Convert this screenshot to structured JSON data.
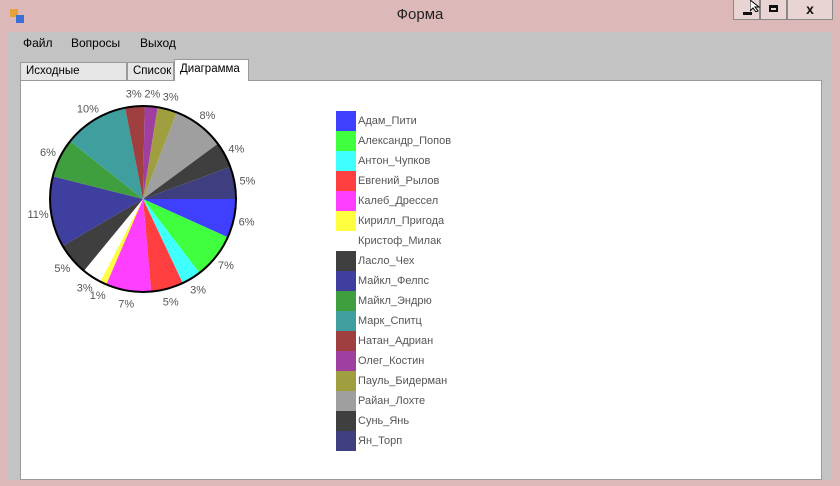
{
  "window": {
    "title": "Форма",
    "close_glyph": "x"
  },
  "menu": {
    "items": [
      "Файл",
      "Вопросы",
      "Выход"
    ]
  },
  "tabs": [
    {
      "label": "Исходные данные",
      "active": false
    },
    {
      "label": "Список",
      "active": false
    },
    {
      "label": "Диаграмма",
      "active": true
    }
  ],
  "chart_data": {
    "type": "pie",
    "title": "",
    "start_angle_deg": 0,
    "direction": "clockwise",
    "slices": [
      {
        "name": "Адам_Пити",
        "value": 6,
        "label": "6%",
        "color": "#3f3fff"
      },
      {
        "name": "Александр_Попов",
        "value": 7,
        "label": "7%",
        "color": "#3fff3f"
      },
      {
        "name": "Антон_Чупков",
        "value": 3,
        "label": "3%",
        "color": "#3fffff"
      },
      {
        "name": "Евгений_Рылов",
        "value": 5,
        "label": "5%",
        "color": "#ff3f3f"
      },
      {
        "name": "Калеб_Дрессел",
        "value": 7,
        "label": "7%",
        "color": "#ff3fff"
      },
      {
        "name": "Кирилл_Пригода",
        "value": 1,
        "label": "1%",
        "color": "#ffff3f"
      },
      {
        "name": "Кристоф_Милак",
        "value": 3,
        "label": "3%",
        "color": "#ffffff"
      },
      {
        "name": "Ласло_Чех",
        "value": 5,
        "label": "5%",
        "color": "#3f3f3f"
      },
      {
        "name": "Майкл_Фелпс",
        "value": 11,
        "label": "11%",
        "color": "#3f3f9f"
      },
      {
        "name": "Майкл_Эндрю",
        "value": 6,
        "label": "6%",
        "color": "#3f9f3f"
      },
      {
        "name": "Марк_Спитц",
        "value": 10,
        "label": "10%",
        "color": "#3f9f9f"
      },
      {
        "name": "Натан_Адриан",
        "value": 3,
        "label": "3%",
        "color": "#9f3f3f"
      },
      {
        "name": "Олег_Костин",
        "value": 2,
        "label": "2%",
        "color": "#9f3f9f"
      },
      {
        "name": "Пауль_Бидерман",
        "value": 3,
        "label": "3%",
        "color": "#9f9f3f"
      },
      {
        "name": "Райан_Лохте",
        "value": 8,
        "label": "8%",
        "color": "#9f9f9f"
      },
      {
        "name": "Сунь_Янь",
        "value": 4,
        "label": "4%",
        "color": "#3f3f3f"
      },
      {
        "name": "Ян_Торп",
        "value": 5,
        "label": "5%",
        "color": "#3f3f7f"
      }
    ],
    "legend_position": "right"
  }
}
